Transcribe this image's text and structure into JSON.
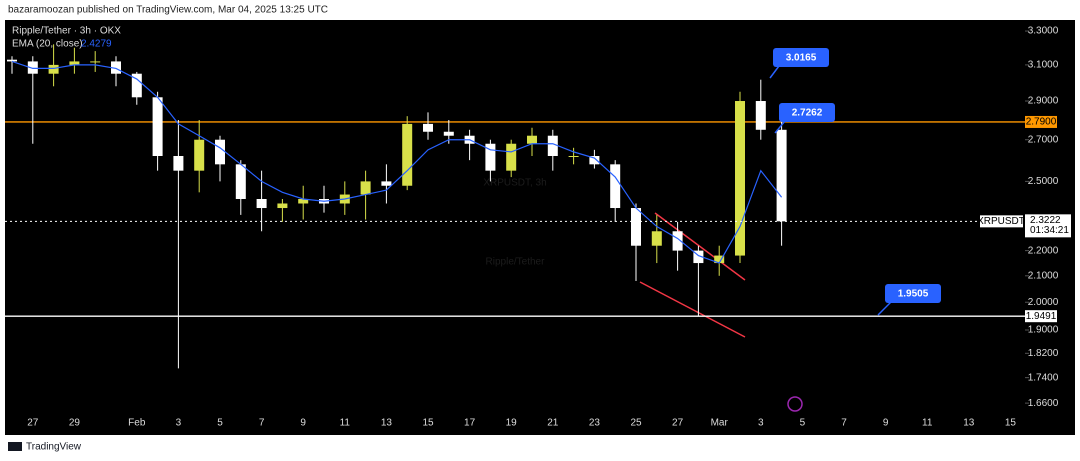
{
  "header": "bazaramoozan published on TradingView.com, Mar 04, 2025 13:25 UTC",
  "footer": "TradingView",
  "chart_data": {
    "type": "candlestick",
    "title": "Ripple/Tether · 3h · OKX",
    "watermark": "XRPUSDT, 3h",
    "watermark_subtitle": "Ripple/Tether",
    "categories": [
      null,
      "27",
      null,
      "29",
      null,
      null,
      "Feb",
      null,
      "3",
      null,
      "5",
      null,
      "7",
      null,
      "9",
      null,
      "11",
      null,
      "13",
      null,
      "15",
      null,
      "17",
      null,
      "19",
      null,
      "21",
      null,
      "23",
      null,
      "25",
      null,
      "27",
      null,
      "Mar",
      null,
      "3",
      null,
      "5",
      null,
      "7",
      null,
      "9",
      null,
      "11",
      null,
      "13",
      null,
      "15"
    ],
    "open": [
      3.13,
      3.12,
      3.05,
      3.1,
      3.12,
      3.12,
      3.05,
      2.92,
      2.62,
      2.55,
      2.7,
      2.58,
      2.42,
      2.38,
      2.4,
      2.42,
      2.4,
      2.44,
      2.5,
      2.48,
      2.78,
      2.74,
      2.72,
      2.68,
      2.55,
      2.68,
      2.72,
      2.62,
      2.62,
      2.58,
      2.38,
      2.22,
      2.28,
      2.2,
      2.15,
      2.18,
      2.9,
      2.75,
      null,
      null,
      null,
      null,
      null,
      null,
      null,
      null,
      null,
      null,
      null
    ],
    "high": [
      3.15,
      3.15,
      3.22,
      3.2,
      3.18,
      3.15,
      3.06,
      2.95,
      2.8,
      2.8,
      2.72,
      2.6,
      2.55,
      2.42,
      2.48,
      2.48,
      2.5,
      2.55,
      2.58,
      2.82,
      2.84,
      2.8,
      2.75,
      2.7,
      2.7,
      2.76,
      2.75,
      2.66,
      2.65,
      2.6,
      2.4,
      2.35,
      2.32,
      2.22,
      2.22,
      2.95,
      3.0165,
      2.8,
      null,
      null,
      null,
      null,
      null,
      null,
      null,
      null,
      null,
      null,
      null
    ],
    "low": [
      3.05,
      2.68,
      2.98,
      3.05,
      3.06,
      2.98,
      2.88,
      2.55,
      1.77,
      2.45,
      2.5,
      2.35,
      2.28,
      2.32,
      2.33,
      2.36,
      2.35,
      2.33,
      2.4,
      2.46,
      2.7,
      2.68,
      2.6,
      2.5,
      2.52,
      2.62,
      2.55,
      2.58,
      2.56,
      2.32,
      2.08,
      2.15,
      2.12,
      1.95,
      2.1,
      2.15,
      2.7,
      2.22,
      null,
      null,
      null,
      null,
      null,
      null,
      null,
      null,
      null,
      null,
      null
    ],
    "close": [
      3.12,
      3.05,
      3.1,
      3.12,
      3.12,
      3.05,
      2.92,
      2.62,
      2.55,
      2.7,
      2.58,
      2.42,
      2.38,
      2.4,
      2.42,
      2.4,
      2.44,
      2.5,
      2.48,
      2.78,
      2.74,
      2.72,
      2.68,
      2.55,
      2.68,
      2.72,
      2.62,
      2.62,
      2.58,
      2.38,
      2.22,
      2.28,
      2.2,
      2.15,
      2.18,
      2.9,
      2.75,
      2.3222,
      null,
      null,
      null,
      null,
      null,
      null,
      null,
      null,
      null,
      null,
      null
    ],
    "up_color": "#d8e04a",
    "down_color": "#ffffff",
    "ema": {
      "name": "EMA (20, close)",
      "color": "#2962ff",
      "values": [
        3.12,
        3.08,
        3.08,
        3.1,
        3.1,
        3.08,
        3.02,
        2.92,
        2.78,
        2.72,
        2.66,
        2.58,
        2.5,
        2.45,
        2.42,
        2.41,
        2.42,
        2.44,
        2.46,
        2.55,
        2.65,
        2.7,
        2.7,
        2.65,
        2.64,
        2.68,
        2.68,
        2.64,
        2.61,
        2.52,
        2.38,
        2.3,
        2.25,
        2.18,
        2.15,
        2.3,
        2.55,
        2.4279,
        null,
        null,
        null,
        null,
        null,
        null,
        null,
        null,
        null,
        null,
        null
      ]
    },
    "log_scale": true,
    "ylim": [
      1.624,
      3.368
    ],
    "yticks": [
      {
        "value": 3.3,
        "label": "3.3000"
      },
      {
        "value": 3.1,
        "label": "3.1000"
      },
      {
        "value": 2.9,
        "label": "2.9000"
      },
      {
        "value": 2.7,
        "label": "2.7000"
      },
      {
        "value": 2.5,
        "label": "2.5000"
      },
      {
        "value": 2.2,
        "label": "2.2000"
      },
      {
        "value": 2.1,
        "label": "2.1000"
      },
      {
        "value": 2.0,
        "label": "2.0000"
      },
      {
        "value": 1.9,
        "label": "1.9000"
      },
      {
        "value": 1.82,
        "label": "1.8200"
      },
      {
        "value": 1.74,
        "label": "1.7400"
      },
      {
        "value": 1.66,
        "label": "1.6600"
      }
    ],
    "levels": [
      {
        "value": 2.79,
        "label": "2.7900",
        "color": "#ff9800"
      },
      {
        "value": 1.9491,
        "label": "1.9491",
        "color": "#ffffff"
      }
    ],
    "last_price": {
      "value": 2.3222,
      "symbol": "XRPUSDT",
      "countdown": "01:34:21"
    },
    "callouts": [
      3.0165,
      2.7262,
      1.9505
    ]
  }
}
